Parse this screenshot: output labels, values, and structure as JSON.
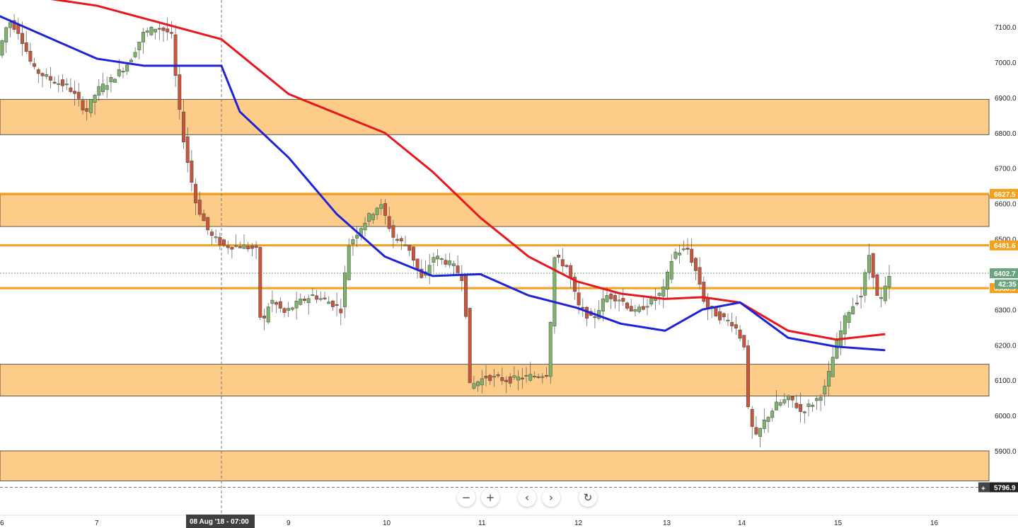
{
  "chart_data": {
    "type": "candlestick",
    "title": "",
    "ylim": [
      5770,
      7160
    ],
    "y_ticks": [
      "7100.0",
      "7000.0",
      "6900.0",
      "6800.0",
      "6700.0",
      "6600.0",
      "6500.0",
      "6300.0",
      "6200.0",
      "6100.0",
      "6000.0",
      "5900.0"
    ],
    "x_ticks": [
      "6",
      "7",
      "9",
      "10",
      "11",
      "12",
      "13",
      "14",
      "15",
      "16"
    ],
    "zones": [
      {
        "from": 6795,
        "to": 6895
      },
      {
        "from": 6535,
        "to": 6625
      },
      {
        "from": 6055,
        "to": 6145
      },
      {
        "from": 5815,
        "to": 5900
      }
    ],
    "horizontal_lines": [
      {
        "value": 6627.5,
        "label": "6627.5"
      },
      {
        "value": 6481.6,
        "label": "6481.6"
      },
      {
        "value": 6360.5,
        "label": "6360.5"
      }
    ],
    "last_price": {
      "value": "6402.7",
      "countdown": "42:35"
    },
    "crosshair": {
      "time_label": "08 Aug '18 - 07:00",
      "price_label": "5796.9"
    },
    "series": [
      {
        "name": "",
        "color": "#e8171f",
        "points": [
          [
            "6",
            7200
          ],
          [
            "7",
            7160
          ],
          [
            "8 Aug",
            7065
          ],
          [
            "9",
            6910
          ],
          [
            "10",
            6800
          ],
          [
            "10.5",
            6690
          ],
          [
            "11",
            6560
          ],
          [
            "11.5",
            6450
          ],
          [
            "12",
            6380
          ],
          [
            "12.5",
            6345
          ],
          [
            "13",
            6330
          ],
          [
            "13.5",
            6335
          ],
          [
            "14",
            6320
          ],
          [
            "14.5",
            6240
          ],
          [
            "15",
            6215
          ],
          [
            "15.5",
            6230
          ]
        ]
      },
      {
        "name": "",
        "color": "#1e23d8",
        "points": [
          [
            "6",
            7130
          ],
          [
            "7",
            7010
          ],
          [
            "7.5",
            6990
          ],
          [
            "8 Aug",
            6990
          ],
          [
            "8.5",
            6860
          ],
          [
            "9",
            6730
          ],
          [
            "9.5",
            6570
          ],
          [
            "10",
            6450
          ],
          [
            "10.5",
            6395
          ],
          [
            "11",
            6400
          ],
          [
            "11.5",
            6340
          ],
          [
            "12",
            6305
          ],
          [
            "12.5",
            6260
          ],
          [
            "13",
            6240
          ],
          [
            "13.5",
            6300
          ],
          [
            "14",
            6320
          ],
          [
            "14.5",
            6220
          ],
          [
            "15",
            6195
          ],
          [
            "15.5",
            6185
          ]
        ]
      }
    ],
    "candle_colors": {
      "up": "#7cb46a",
      "down": "#c9553a"
    },
    "zone_color": "#fdcc89",
    "line_color": "#f59f1b",
    "last_price_color": "#6aa47e"
  },
  "toolbar": {
    "zoom_out": "−",
    "zoom_in": "+",
    "scroll_left": "‹",
    "scroll_right": "›",
    "reset": "↻"
  }
}
